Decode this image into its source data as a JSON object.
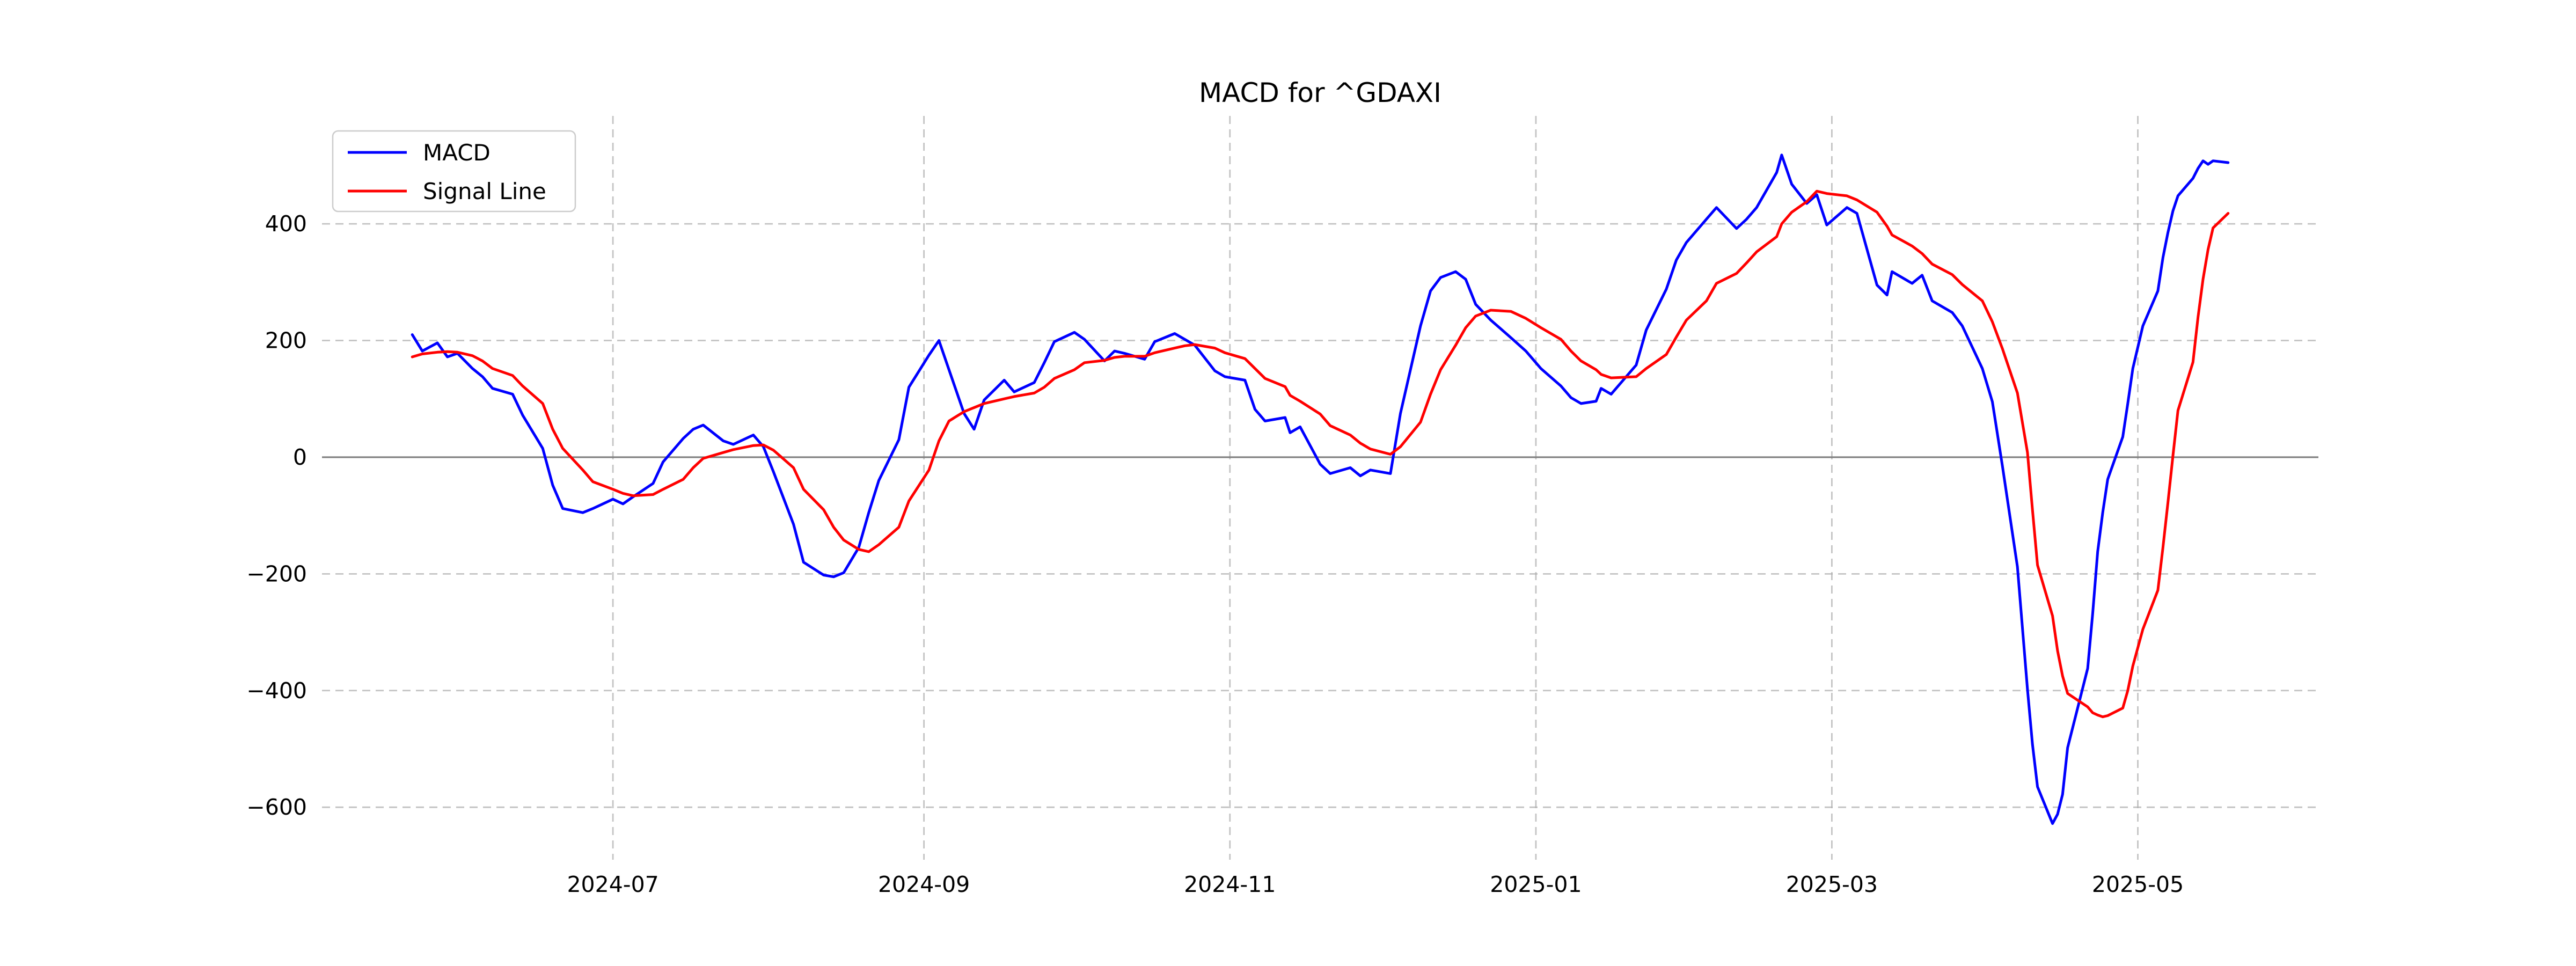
{
  "page": {
    "background": "#ffffff"
  },
  "chart_data": {
    "type": "line",
    "title": "MACD for ^GDAXI",
    "xlabel": "",
    "ylabel": "",
    "grid": "dashed",
    "legend_position": "upper-left",
    "colors": {
      "macd": "#0000ff",
      "signal": "#ff0000",
      "grid": "#b0b0b0",
      "zero_line": "#7f7f7f",
      "text": "#000000",
      "legend_border": "#cccccc"
    },
    "xlim": [
      "2024-05-04",
      "2025-06-06"
    ],
    "ylim": [
      -690,
      585
    ],
    "zero_line": 0,
    "x_ticks": [
      {
        "value": "2024-07-01",
        "label": "2024-07"
      },
      {
        "value": "2024-09-01",
        "label": "2024-09"
      },
      {
        "value": "2024-11-01",
        "label": "2024-11"
      },
      {
        "value": "2025-01-01",
        "label": "2025-01"
      },
      {
        "value": "2025-03-01",
        "label": "2025-03"
      },
      {
        "value": "2025-05-01",
        "label": "2025-05"
      }
    ],
    "y_ticks": [
      {
        "value": 400,
        "label": "400"
      },
      {
        "value": 200,
        "label": "200"
      },
      {
        "value": 0,
        "label": "0"
      },
      {
        "value": -200,
        "label": "−200"
      },
      {
        "value": -400,
        "label": "−400"
      },
      {
        "value": -600,
        "label": "−600"
      }
    ],
    "x": [
      "2024-05-22",
      "2024-05-24",
      "2024-05-27",
      "2024-05-29",
      "2024-05-31",
      "2024-06-03",
      "2024-06-05",
      "2024-06-07",
      "2024-06-11",
      "2024-06-13",
      "2024-06-17",
      "2024-06-19",
      "2024-06-21",
      "2024-06-25",
      "2024-06-27",
      "2024-07-01",
      "2024-07-03",
      "2024-07-05",
      "2024-07-09",
      "2024-07-11",
      "2024-07-15",
      "2024-07-17",
      "2024-07-19",
      "2024-07-23",
      "2024-07-25",
      "2024-07-29",
      "2024-07-31",
      "2024-08-02",
      "2024-08-06",
      "2024-08-08",
      "2024-08-12",
      "2024-08-14",
      "2024-08-16",
      "2024-08-19",
      "2024-08-21",
      "2024-08-23",
      "2024-08-27",
      "2024-08-29",
      "2024-09-02",
      "2024-09-04",
      "2024-09-06",
      "2024-09-09",
      "2024-09-11",
      "2024-09-13",
      "2024-09-17",
      "2024-09-19",
      "2024-09-23",
      "2024-09-25",
      "2024-09-27",
      "2024-10-01",
      "2024-10-03",
      "2024-10-07",
      "2024-10-09",
      "2024-10-11",
      "2024-10-15",
      "2024-10-17",
      "2024-10-21",
      "2024-10-23",
      "2024-10-25",
      "2024-10-29",
      "2024-10-31",
      "2024-11-04",
      "2024-11-06",
      "2024-11-08",
      "2024-11-12",
      "2024-11-13",
      "2024-11-15",
      "2024-11-19",
      "2024-11-21",
      "2024-11-25",
      "2024-11-27",
      "2024-11-29",
      "2024-12-03",
      "2024-12-05",
      "2024-12-09",
      "2024-12-11",
      "2024-12-13",
      "2024-12-16",
      "2024-12-18",
      "2024-12-20",
      "2024-12-23",
      "2024-12-27",
      "2024-12-30",
      "2025-01-02",
      "2025-01-06",
      "2025-01-08",
      "2025-01-10",
      "2025-01-13",
      "2025-01-14",
      "2025-01-16",
      "2025-01-21",
      "2025-01-23",
      "2025-01-27",
      "2025-01-29",
      "2025-01-31",
      "2025-02-04",
      "2025-02-06",
      "2025-02-10",
      "2025-02-12",
      "2025-02-14",
      "2025-02-18",
      "2025-02-19",
      "2025-02-21",
      "2025-02-24",
      "2025-02-26",
      "2025-02-28",
      "2025-03-04",
      "2025-03-06",
      "2025-03-10",
      "2025-03-12",
      "2025-03-13",
      "2025-03-17",
      "2025-03-19",
      "2025-03-21",
      "2025-03-25",
      "2025-03-27",
      "2025-03-31",
      "2025-04-02",
      "2025-04-04",
      "2025-04-07",
      "2025-04-09",
      "2025-04-10",
      "2025-04-11",
      "2025-04-14",
      "2025-04-15",
      "2025-04-16",
      "2025-04-17",
      "2025-04-21",
      "2025-04-22",
      "2025-04-23",
      "2025-04-24",
      "2025-04-25",
      "2025-04-28",
      "2025-04-29",
      "2025-04-30",
      "2025-05-02",
      "2025-05-05",
      "2025-05-06",
      "2025-05-07",
      "2025-05-08",
      "2025-05-09",
      "2025-05-12",
      "2025-05-13",
      "2025-05-14",
      "2025-05-15",
      "2025-05-16",
      "2025-05-19"
    ],
    "series": [
      {
        "name": "MACD",
        "color_key": "macd",
        "values": [
          210,
          182,
          196,
          172,
          178,
          152,
          138,
          118,
          108,
          72,
          15,
          -48,
          -88,
          -95,
          -88,
          -72,
          -80,
          -68,
          -45,
          -8,
          32,
          48,
          55,
          28,
          22,
          38,
          18,
          -25,
          -115,
          -180,
          -202,
          -205,
          -198,
          -155,
          -95,
          -40,
          30,
          120,
          175,
          200,
          150,
          75,
          48,
          98,
          132,
          112,
          128,
          162,
          198,
          214,
          202,
          165,
          182,
          178,
          168,
          198,
          212,
          202,
          192,
          148,
          138,
          132,
          82,
          62,
          68,
          42,
          52,
          -12,
          -28,
          -18,
          -32,
          -22,
          -28,
          75,
          225,
          285,
          308,
          318,
          305,
          262,
          235,
          205,
          182,
          152,
          122,
          102,
          92,
          96,
          118,
          108,
          158,
          218,
          288,
          338,
          368,
          408,
          428,
          392,
          408,
          428,
          488,
          518,
          468,
          435,
          450,
          398,
          428,
          418,
          295,
          278,
          318,
          298,
          312,
          268,
          248,
          225,
          152,
          95,
          -15,
          -188,
          -398,
          -492,
          -565,
          -628,
          -612,
          -578,
          -498,
          -362,
          -268,
          -162,
          -95,
          -38,
          35,
          92,
          152,
          225,
          285,
          342,
          385,
          422,
          448,
          478,
          495,
          508,
          502,
          508,
          505
        ]
      },
      {
        "name": "Signal Line",
        "color_key": "signal",
        "values": [
          172,
          177,
          180,
          181,
          180,
          174,
          165,
          152,
          140,
          122,
          92,
          48,
          15,
          -22,
          -42,
          -55,
          -62,
          -66,
          -64,
          -55,
          -38,
          -18,
          -2,
          8,
          13,
          20,
          21,
          12,
          -18,
          -55,
          -90,
          -120,
          -142,
          -158,
          -162,
          -150,
          -120,
          -75,
          -22,
          28,
          62,
          78,
          85,
          92,
          100,
          104,
          110,
          120,
          135,
          150,
          162,
          166,
          171,
          173,
          173,
          179,
          187,
          191,
          193,
          187,
          179,
          169,
          152,
          135,
          121,
          106,
          96,
          74,
          54,
          38,
          24,
          14,
          5,
          18,
          60,
          108,
          150,
          192,
          222,
          242,
          252,
          250,
          238,
          222,
          202,
          182,
          165,
          150,
          142,
          136,
          138,
          152,
          176,
          206,
          235,
          268,
          298,
          315,
          333,
          352,
          378,
          400,
          420,
          438,
          456,
          452,
          448,
          441,
          420,
          396,
          381,
          362,
          349,
          331,
          313,
          296,
          268,
          232,
          186,
          110,
          8,
          -90,
          -185,
          -272,
          -332,
          -375,
          -405,
          -428,
          -438,
          -442,
          -445,
          -443,
          -430,
          -400,
          -358,
          -295,
          -228,
          -155,
          -78,
          2,
          80,
          163,
          240,
          305,
          356,
          393,
          418
        ]
      }
    ]
  }
}
